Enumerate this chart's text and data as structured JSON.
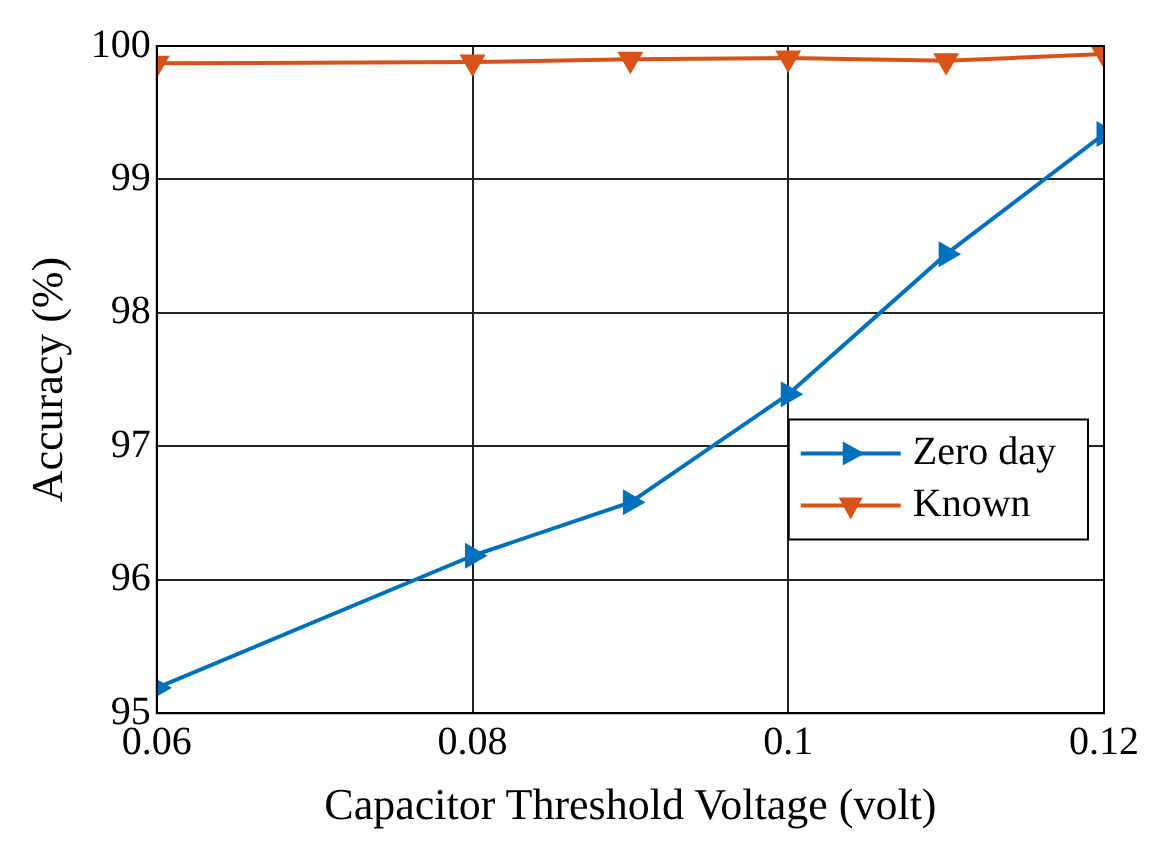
{
  "chart_data": {
    "type": "line",
    "xlabel": "Capacitor Threshold Voltage (volt)",
    "ylabel": "Accuracy (%)",
    "x": [
      0.06,
      0.08,
      0.09,
      0.1,
      0.11,
      0.12
    ],
    "series": [
      {
        "name": "Zero day",
        "color": "#0072bd",
        "marker": "triangle",
        "values": [
          95.19,
          96.18,
          96.58,
          97.39,
          98.44,
          99.34
        ]
      },
      {
        "name": "Known",
        "color": "#d95319",
        "marker": "triangle",
        "values": [
          99.87,
          99.88,
          99.9,
          99.91,
          99.89,
          99.94
        ]
      }
    ],
    "xlim": [
      0.06,
      0.12
    ],
    "xticks": [
      0.06,
      0.08,
      0.1,
      0.12
    ],
    "ylim": [
      95,
      100
    ],
    "yticks": [
      95,
      96,
      97,
      98,
      99,
      100
    ],
    "grid": true,
    "legend": "right",
    "line_style": "solid"
  }
}
